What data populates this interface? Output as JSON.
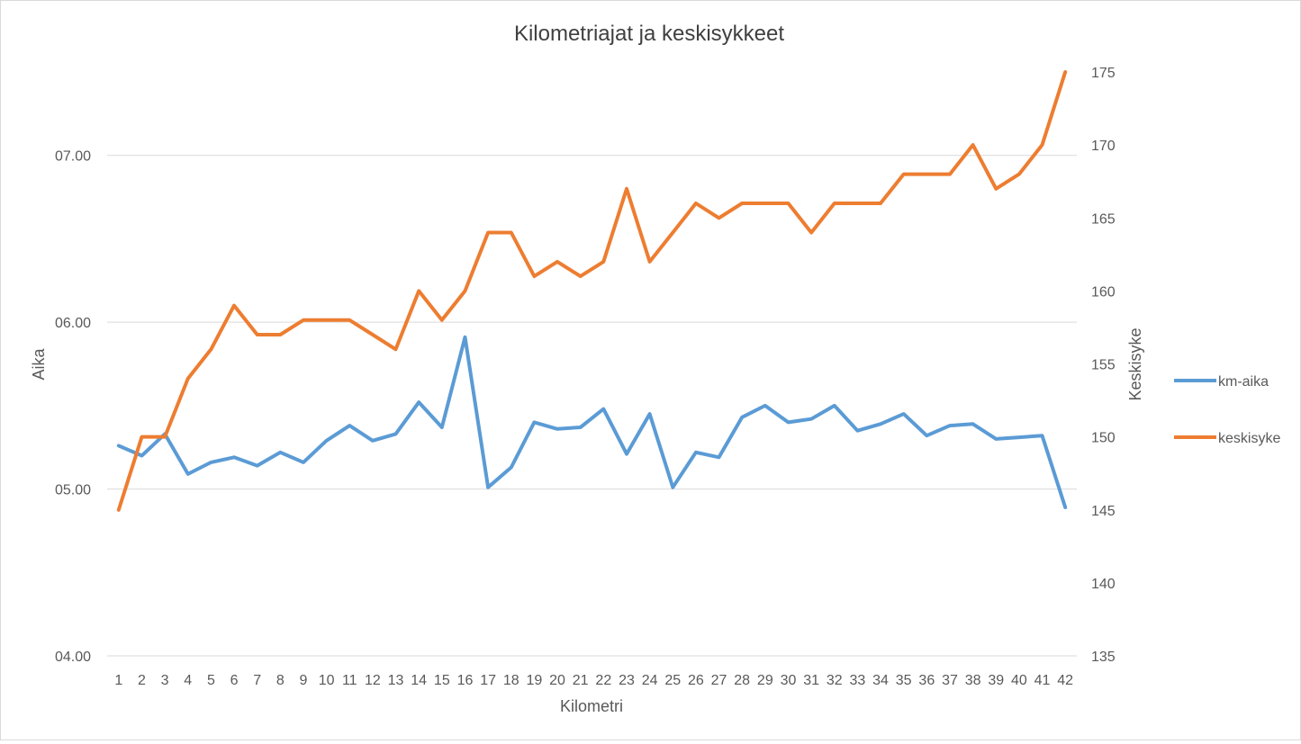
{
  "chart_data": {
    "type": "line",
    "title": "Kilometriajat ja keskisykkeet",
    "xlabel": "Kilometri",
    "ylabel": "Aika",
    "y2label": "Keskisyke",
    "legend_position": "right",
    "grid": true,
    "categories": [
      "1",
      "2",
      "3",
      "4",
      "5",
      "6",
      "7",
      "8",
      "9",
      "10",
      "11",
      "12",
      "13",
      "14",
      "15",
      "16",
      "17",
      "18",
      "19",
      "20",
      "21",
      "22",
      "23",
      "24",
      "25",
      "26",
      "27",
      "28",
      "29",
      "30",
      "31",
      "32",
      "33",
      "34",
      "35",
      "36",
      "37",
      "38",
      "39",
      "40",
      "41",
      "42"
    ],
    "y_ticks": [
      "04.00",
      "05.00",
      "06.00",
      "07.00"
    ],
    "y_range_minutes": [
      4,
      7.5
    ],
    "y2_ticks": [
      135,
      140,
      145,
      150,
      155,
      160,
      165,
      170,
      175
    ],
    "y2_range": [
      135,
      175
    ],
    "series": [
      {
        "name": "km-aika",
        "axis": "left",
        "color": "#5b9bd5",
        "values": [
          5.26,
          5.2,
          5.33,
          5.09,
          5.16,
          5.19,
          5.14,
          5.22,
          5.16,
          5.29,
          5.38,
          5.29,
          5.33,
          5.52,
          5.37,
          5.91,
          5.01,
          5.13,
          5.4,
          5.36,
          5.37,
          5.48,
          5.21,
          5.45,
          5.01,
          5.22,
          5.19,
          5.43,
          5.5,
          5.4,
          5.42,
          5.5,
          5.35,
          5.39,
          5.45,
          5.32,
          5.38,
          5.39,
          5.3,
          5.31,
          5.32,
          4.89
        ]
      },
      {
        "name": "keskisyke",
        "axis": "right",
        "color": "#ed7d31",
        "values": [
          145,
          150,
          150,
          154,
          156,
          159,
          157,
          157,
          158,
          158,
          158,
          157,
          156,
          160,
          158,
          160,
          164,
          164,
          161,
          162,
          161,
          162,
          167,
          162,
          164,
          166,
          165,
          166,
          166,
          166,
          164,
          166,
          166,
          166,
          168,
          168,
          168,
          170,
          167,
          168,
          170,
          175
        ]
      }
    ]
  }
}
